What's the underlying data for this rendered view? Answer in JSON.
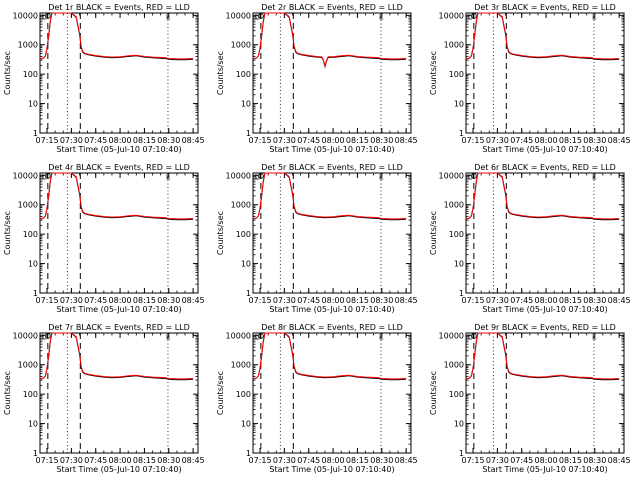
{
  "chart_data": [
    {
      "type": "line",
      "title": "Det 1r BLACK = Events, RED = LLD",
      "xlabel": "Start Time (05-Jul-10 07:10:40)",
      "ylabel": "Counts/sec",
      "dip": false
    },
    {
      "type": "line",
      "title": "Det 2r BLACK = Events, RED = LLD",
      "xlabel": "Start Time (05-Jul-10 07:10:40)",
      "ylabel": "Counts/sec",
      "dip": true
    },
    {
      "type": "line",
      "title": "Det 3r BLACK = Events, RED = LLD",
      "xlabel": "Start Time (05-Jul-10 07:10:40)",
      "ylabel": "Counts/sec",
      "dip": false
    },
    {
      "type": "line",
      "title": "Det 4r BLACK = Events, RED = LLD",
      "xlabel": "Start Time (05-Jul-10 07:10:40)",
      "ylabel": "Counts/sec",
      "dip": false
    },
    {
      "type": "line",
      "title": "Det 5r BLACK = Events, RED = LLD",
      "xlabel": "Start Time (05-Jul-10 07:10:40)",
      "ylabel": "Counts/sec",
      "dip": false
    },
    {
      "type": "line",
      "title": "Det 6r BLACK = Events, RED = LLD",
      "xlabel": "Start Time (05-Jul-10 07:10:40)",
      "ylabel": "Counts/sec",
      "dip": false
    },
    {
      "type": "line",
      "title": "Det 7r BLACK = Events, RED = LLD",
      "xlabel": "Start Time (05-Jul-10 07:10:40)",
      "ylabel": "Counts/sec",
      "dip": false
    },
    {
      "type": "line",
      "title": "Det 8r BLACK = Events, RED = LLD",
      "xlabel": "Start Time (05-Jul-10 07:10:40)",
      "ylabel": "Counts/sec",
      "dip": false
    },
    {
      "type": "line",
      "title": "Det 9r BLACK = Events, RED = LLD",
      "xlabel": "Start Time (05-Jul-10 07:10:40)",
      "ylabel": "Counts/sec",
      "dip": false
    }
  ],
  "axes": {
    "x_ticks": [
      "07:15",
      "07:30",
      "07:45",
      "08:00",
      "08:15",
      "08:30",
      "08:45"
    ],
    "x_tick_minutes": [
      15,
      30,
      45,
      60,
      75,
      90,
      105
    ],
    "xlim_minutes": [
      10.67,
      108
    ],
    "y_ticks": [
      "1",
      "10",
      "100",
      "1000",
      "10000"
    ],
    "y_tick_values": [
      1,
      10,
      100,
      1000,
      10000
    ],
    "ylim": [
      1,
      12000
    ],
    "dashed_markers_minutes": [
      15.5,
      35.5
    ],
    "dotted_markers_minutes": [
      27.5,
      89.5
    ],
    "scale": "log"
  },
  "series": {
    "events_color": "#000000",
    "lld_color": "#ff0000",
    "x_minutes": [
      10.7,
      12,
      13,
      14,
      15,
      16,
      17,
      18,
      19,
      20,
      22,
      25,
      28,
      30,
      33,
      35,
      36,
      37,
      38,
      40,
      45,
      50,
      55,
      60,
      65,
      70,
      75,
      80,
      85,
      88,
      90,
      95,
      100,
      105
    ],
    "lld": [
      330,
      340,
      360,
      420,
      750,
      2200,
      6500,
      12000,
      12000,
      12000,
      12000,
      12000,
      12000,
      12000,
      9000,
      2500,
      900,
      600,
      520,
      480,
      430,
      400,
      380,
      390,
      420,
      440,
      400,
      380,
      370,
      360,
      340,
      330,
      330,
      340
    ],
    "events": [
      330,
      340,
      360,
      420,
      720,
      2000,
      6000,
      12000,
      12000,
      12000,
      12000,
      12000,
      12000,
      12000,
      8500,
      2300,
      850,
      560,
      500,
      460,
      410,
      380,
      360,
      370,
      400,
      420,
      380,
      360,
      350,
      340,
      320,
      310,
      310,
      320
    ]
  }
}
